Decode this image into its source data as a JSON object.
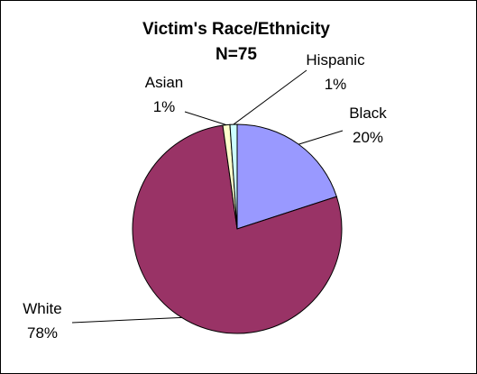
{
  "chart_data": {
    "type": "pie",
    "title": "Victim's Race/Ethnicity",
    "subtitle": "N=75",
    "slices": [
      {
        "name": "Black",
        "percent_label": "20%",
        "value": 20,
        "color": "#9999FF"
      },
      {
        "name": "White",
        "percent_label": "78%",
        "value": 77.8,
        "color": "#993366"
      },
      {
        "name": "Asian",
        "percent_label": "1%",
        "value": 1.1,
        "color": "#FFFFCC"
      },
      {
        "name": "Hispanic",
        "percent_label": "1%",
        "value": 1.1,
        "color": "#CCFFFF"
      }
    ],
    "legend": "none"
  }
}
